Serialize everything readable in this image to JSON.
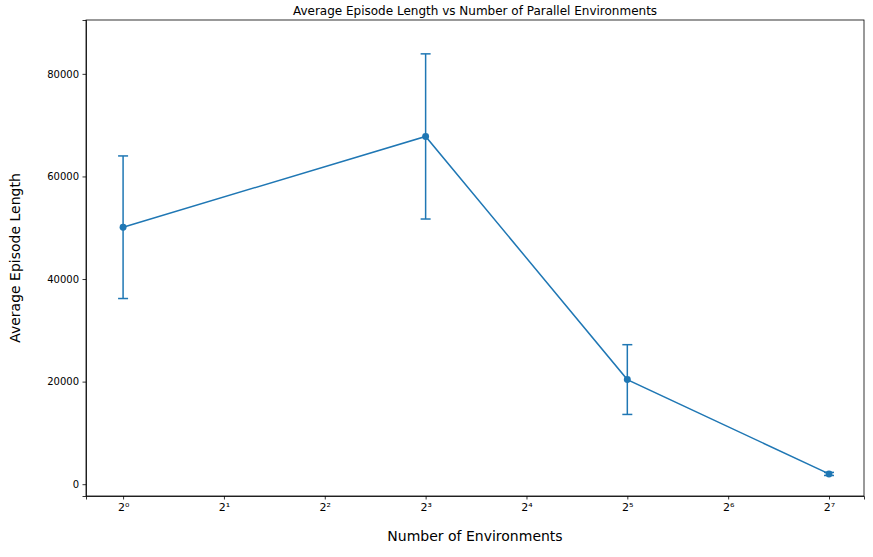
{
  "chart_data": {
    "type": "line",
    "title": "Average Episode Length vs Number of Parallel Environments",
    "x_label": "Number of Environments",
    "y_label": "Average Episode Length",
    "x": [
      1,
      8,
      32,
      128
    ],
    "values": [
      50100,
      67800,
      20400,
      2000
    ],
    "errors": [
      13900,
      16100,
      6800,
      300
    ],
    "color": "#1f77b4",
    "marker": "circle",
    "log": "x",
    "xlim": [
      0.775,
      162.8
    ],
    "ylim": [
      -2300,
      90500
    ],
    "xticks": [
      {
        "value": 1,
        "label": "2⁰"
      },
      {
        "value": 2,
        "label": "2¹"
      },
      {
        "value": 4,
        "label": "2²"
      },
      {
        "value": 8,
        "label": "2³"
      },
      {
        "value": 16,
        "label": "2⁴"
      },
      {
        "value": 32,
        "label": "2⁵"
      },
      {
        "value": 64,
        "label": "2⁶"
      },
      {
        "value": 128,
        "label": "2⁷"
      }
    ],
    "yticks": [
      0,
      20000,
      40000,
      60000,
      80000
    ]
  }
}
